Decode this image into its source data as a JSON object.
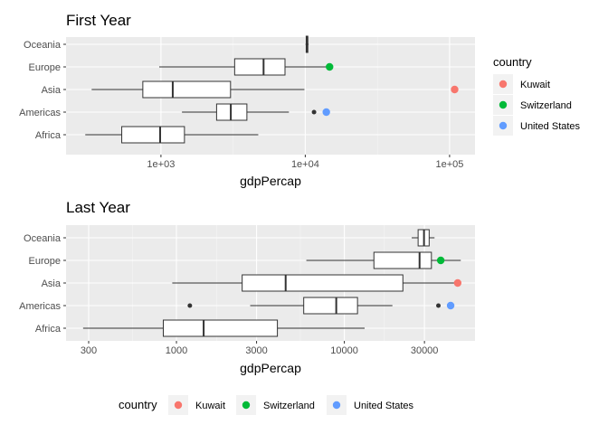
{
  "legend_title": "country",
  "legend_entries": [
    {
      "name": "Kuwait",
      "color": "#F8766D"
    },
    {
      "name": "Switzerland",
      "color": "#00BA38"
    },
    {
      "name": "United States",
      "color": "#619CFF"
    }
  ],
  "chart_data": [
    {
      "type": "boxplot",
      "title": "First Year",
      "xlabel": "gdpPercap",
      "ylabel": "",
      "x_scale": "log10",
      "xlim": [
        220,
        150000
      ],
      "x_ticks": [
        1000,
        10000,
        100000
      ],
      "x_tick_labels": [
        "1e+03",
        "1e+04",
        "1e+05"
      ],
      "categories": [
        "Africa",
        "Americas",
        "Asia",
        "Europe",
        "Oceania"
      ],
      "boxes": [
        {
          "continent": "Africa",
          "whisker_low": 299,
          "q1": 535,
          "median": 987,
          "q3": 1455,
          "whisker_high": 4725
        },
        {
          "continent": "Americas",
          "whisker_low": 1398,
          "q1": 2430,
          "median": 3048,
          "q3": 3940,
          "whisker_high": 7700,
          "outliers": [
            11500,
            13990
          ]
        },
        {
          "continent": "Asia",
          "whisker_low": 331,
          "q1": 749,
          "median": 1207,
          "q3": 3035,
          "whisker_high": 9867,
          "outliers": [
            108382
          ]
        },
        {
          "continent": "Europe",
          "whisker_low": 973,
          "q1": 3241,
          "median": 5142,
          "q3": 7237,
          "whisker_high": 14734
        },
        {
          "continent": "Oceania",
          "whisker_low": 10040,
          "q1": 10140,
          "median": 10298,
          "q3": 10420,
          "whisker_high": 10556
        }
      ],
      "highlights": [
        {
          "country": "Kuwait",
          "continent": "Asia",
          "x": 108382
        },
        {
          "country": "Switzerland",
          "continent": "Europe",
          "x": 14734
        },
        {
          "country": "United States",
          "continent": "Americas",
          "x": 13990
        }
      ]
    },
    {
      "type": "boxplot",
      "title": "Last Year",
      "xlabel": "gdpPercap",
      "ylabel": "",
      "x_scale": "log10",
      "xlim": [
        220,
        60000
      ],
      "x_ticks": [
        300,
        1000,
        3000,
        10000,
        30000
      ],
      "x_tick_labels": [
        "300",
        "1000",
        "3000",
        "10000",
        "30000"
      ],
      "categories": [
        "Africa",
        "Americas",
        "Asia",
        "Europe",
        "Oceania"
      ],
      "boxes": [
        {
          "continent": "Africa",
          "whisker_low": 278,
          "q1": 835,
          "median": 1452,
          "q3": 3992,
          "whisker_high": 13206
        },
        {
          "continent": "Americas",
          "whisker_low": 2749,
          "q1": 5728,
          "median": 8948,
          "q3": 11977,
          "whisker_high": 19329,
          "outliers": [
            1202,
            36319,
            42952
          ]
        },
        {
          "continent": "Asia",
          "whisker_low": 944,
          "q1": 2463,
          "median": 4471,
          "q3": 22316,
          "whisker_high": 47307
        },
        {
          "continent": "Europe",
          "whisker_low": 5937,
          "q1": 15000,
          "median": 28054,
          "q3": 33000,
          "whisker_high": 49357
        },
        {
          "continent": "Oceania",
          "whisker_low": 25185,
          "q1": 27500,
          "median": 29810,
          "q3": 32000,
          "whisker_high": 34435
        }
      ],
      "highlights": [
        {
          "country": "Kuwait",
          "continent": "Asia",
          "x": 47307
        },
        {
          "country": "Switzerland",
          "continent": "Europe",
          "x": 37506
        },
        {
          "country": "United States",
          "continent": "Americas",
          "x": 42952
        }
      ]
    }
  ]
}
